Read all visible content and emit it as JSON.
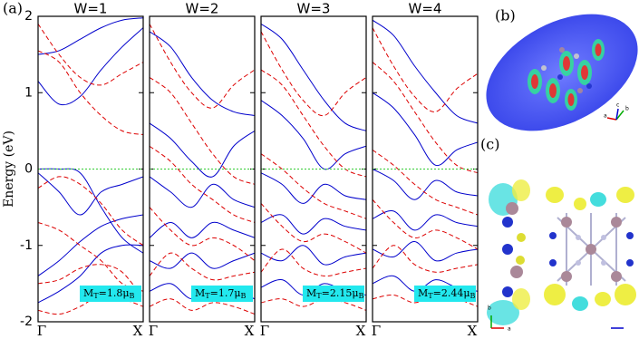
{
  "figure_label": "(a)",
  "chart_data": [
    {
      "type": "line",
      "title": "W=1",
      "ylabel": "Energy (eV)",
      "x": [
        0,
        0.2,
        0.4,
        0.6,
        0.8,
        1
      ],
      "xlim": [
        0,
        1
      ],
      "xticks": [
        {
          "value": 0,
          "label": "Γ"
        },
        {
          "value": 1,
          "label": "X"
        }
      ],
      "ylim": [
        -2,
        2
      ],
      "yticks": [
        2,
        1,
        0,
        -1,
        -2
      ],
      "reference_line": 0,
      "reference_color": "#33cc33",
      "annotation": [
        "M",
        "T",
        "=1.8",
        "μ",
        "B"
      ],
      "series": [
        {
          "color": "#0000cc",
          "dashed": false,
          "values": [
            1.15,
            0.85,
            0.95,
            1.3,
            1.6,
            1.85
          ]
        },
        {
          "color": "#0000cc",
          "dashed": false,
          "values": [
            0.0,
            0.0,
            -0.05,
            -0.5,
            -0.9,
            -1.1
          ]
        },
        {
          "color": "#0000cc",
          "dashed": false,
          "values": [
            -0.05,
            -0.3,
            -0.6,
            -0.3,
            -0.2,
            -0.1
          ]
        },
        {
          "color": "#0000cc",
          "dashed": false,
          "values": [
            -1.4,
            -1.2,
            -0.95,
            -0.75,
            -0.65,
            -0.6
          ]
        },
        {
          "color": "#0000cc",
          "dashed": false,
          "values": [
            -1.75,
            -1.6,
            -1.4,
            -1.1,
            -1.0,
            -1.0
          ]
        },
        {
          "color": "#0000cc",
          "dashed": false,
          "values": [
            1.5,
            1.55,
            1.7,
            1.85,
            1.95,
            1.98
          ]
        },
        {
          "color": "#dd0000",
          "dashed": true,
          "values": [
            1.55,
            1.4,
            1.0,
            0.7,
            0.5,
            0.45
          ]
        },
        {
          "color": "#dd0000",
          "dashed": true,
          "values": [
            1.9,
            1.5,
            1.2,
            1.1,
            1.25,
            1.4
          ]
        },
        {
          "color": "#dd0000",
          "dashed": true,
          "values": [
            -0.25,
            -0.1,
            -0.2,
            -0.45,
            -0.8,
            -1.0
          ]
        },
        {
          "color": "#dd0000",
          "dashed": true,
          "values": [
            -0.7,
            -0.8,
            -1.0,
            -1.2,
            -1.5,
            -1.6
          ]
        },
        {
          "color": "#dd0000",
          "dashed": true,
          "values": [
            -1.5,
            -1.45,
            -1.3,
            -1.25,
            -1.35,
            -1.7
          ]
        },
        {
          "color": "#dd0000",
          "dashed": true,
          "values": [
            -1.85,
            -1.9,
            -1.8,
            -1.65,
            -1.7,
            -1.8
          ]
        }
      ]
    },
    {
      "type": "line",
      "title": "W=2",
      "x": [
        0,
        0.2,
        0.4,
        0.6,
        0.8,
        1
      ],
      "xlim": [
        0,
        1
      ],
      "xticks": [
        {
          "value": 0,
          "label": "Γ"
        },
        {
          "value": 1,
          "label": "X"
        }
      ],
      "ylim": [
        -2,
        2
      ],
      "reference_line": 0,
      "reference_color": "#33cc33",
      "annotation": [
        "M",
        "T",
        "=1.7",
        "μ",
        "B"
      ],
      "series": [
        {
          "color": "#0000cc",
          "dashed": false,
          "values": [
            1.8,
            1.6,
            1.2,
            0.9,
            0.75,
            0.7
          ]
        },
        {
          "color": "#0000cc",
          "dashed": false,
          "values": [
            0.6,
            0.4,
            0.1,
            -0.1,
            0.3,
            0.5
          ]
        },
        {
          "color": "#0000cc",
          "dashed": false,
          "values": [
            -0.1,
            -0.3,
            -0.5,
            -0.2,
            -0.4,
            -0.5
          ]
        },
        {
          "color": "#0000cc",
          "dashed": false,
          "values": [
            -0.9,
            -0.7,
            -0.9,
            -0.7,
            -0.8,
            -0.9
          ]
        },
        {
          "color": "#0000cc",
          "dashed": false,
          "values": [
            -1.2,
            -1.3,
            -1.1,
            -1.3,
            -1.2,
            -1.1
          ]
        },
        {
          "color": "#0000cc",
          "dashed": false,
          "values": [
            -1.6,
            -1.5,
            -1.7,
            -1.55,
            -1.6,
            -1.7
          ]
        },
        {
          "color": "#dd0000",
          "dashed": true,
          "values": [
            1.9,
            1.4,
            1.0,
            0.8,
            1.1,
            1.3
          ]
        },
        {
          "color": "#dd0000",
          "dashed": true,
          "values": [
            1.2,
            1.0,
            0.6,
            0.2,
            -0.1,
            -0.2
          ]
        },
        {
          "color": "#dd0000",
          "dashed": true,
          "values": [
            0.3,
            0.1,
            -0.2,
            -0.4,
            -0.6,
            -0.7
          ]
        },
        {
          "color": "#dd0000",
          "dashed": true,
          "values": [
            -0.5,
            -0.8,
            -1.0,
            -0.9,
            -1.0,
            -1.2
          ]
        },
        {
          "color": "#dd0000",
          "dashed": true,
          "values": [
            -1.4,
            -1.1,
            -1.3,
            -1.45,
            -1.4,
            -1.35
          ]
        },
        {
          "color": "#dd0000",
          "dashed": true,
          "values": [
            -1.8,
            -1.7,
            -1.85,
            -1.75,
            -1.8,
            -1.9
          ]
        }
      ]
    },
    {
      "type": "line",
      "title": "W=3",
      "x": [
        0,
        0.2,
        0.4,
        0.6,
        0.8,
        1
      ],
      "xlim": [
        0,
        1
      ],
      "xticks": [
        {
          "value": 0,
          "label": "Γ"
        },
        {
          "value": 1,
          "label": "X"
        }
      ],
      "ylim": [
        -2,
        2
      ],
      "reference_line": 0,
      "reference_color": "#33cc33",
      "annotation": [
        "M",
        "T",
        "=2.15",
        "μ",
        "B"
      ],
      "series": [
        {
          "color": "#0000cc",
          "dashed": false,
          "values": [
            1.9,
            1.7,
            1.3,
            0.9,
            0.6,
            0.5
          ]
        },
        {
          "color": "#0000cc",
          "dashed": false,
          "values": [
            0.9,
            0.7,
            0.4,
            0.0,
            0.2,
            0.3
          ]
        },
        {
          "color": "#0000cc",
          "dashed": false,
          "values": [
            -0.05,
            -0.2,
            -0.45,
            -0.2,
            -0.35,
            -0.4
          ]
        },
        {
          "color": "#0000cc",
          "dashed": false,
          "values": [
            -0.7,
            -0.6,
            -0.85,
            -0.65,
            -0.75,
            -0.8
          ]
        },
        {
          "color": "#0000cc",
          "dashed": false,
          "values": [
            -1.1,
            -1.2,
            -1.0,
            -1.25,
            -1.15,
            -1.1
          ]
        },
        {
          "color": "#0000cc",
          "dashed": false,
          "values": [
            -1.55,
            -1.45,
            -1.65,
            -1.5,
            -1.6,
            -1.65
          ]
        },
        {
          "color": "#dd0000",
          "dashed": true,
          "values": [
            1.8,
            1.3,
            0.9,
            0.7,
            1.0,
            1.2
          ]
        },
        {
          "color": "#dd0000",
          "dashed": true,
          "values": [
            1.3,
            1.1,
            0.7,
            0.3,
            0.0,
            -0.1
          ]
        },
        {
          "color": "#dd0000",
          "dashed": true,
          "values": [
            0.2,
            0.0,
            -0.25,
            -0.45,
            -0.55,
            -0.65
          ]
        },
        {
          "color": "#dd0000",
          "dashed": true,
          "values": [
            -0.45,
            -0.75,
            -0.95,
            -0.85,
            -0.95,
            -1.1
          ]
        },
        {
          "color": "#dd0000",
          "dashed": true,
          "values": [
            -1.35,
            -1.05,
            -1.3,
            -1.4,
            -1.35,
            -1.3
          ]
        },
        {
          "color": "#dd0000",
          "dashed": true,
          "values": [
            -1.75,
            -1.7,
            -1.8,
            -1.7,
            -1.75,
            -1.85
          ]
        }
      ]
    },
    {
      "type": "line",
      "title": "W=4",
      "x": [
        0,
        0.2,
        0.4,
        0.6,
        0.8,
        1
      ],
      "xlim": [
        0,
        1
      ],
      "xticks": [
        {
          "value": 0,
          "label": "Γ"
        },
        {
          "value": 1,
          "label": "X"
        }
      ],
      "ylim": [
        -2,
        2
      ],
      "reference_line": 0,
      "reference_color": "#33cc33",
      "annotation": [
        "M",
        "T",
        "=2.44",
        "μ",
        "B"
      ],
      "series": [
        {
          "color": "#0000cc",
          "dashed": false,
          "values": [
            1.95,
            1.75,
            1.35,
            1.0,
            0.7,
            0.6
          ]
        },
        {
          "color": "#0000cc",
          "dashed": false,
          "values": [
            1.0,
            0.8,
            0.45,
            0.05,
            0.25,
            0.35
          ]
        },
        {
          "color": "#0000cc",
          "dashed": false,
          "values": [
            0.0,
            -0.15,
            -0.4,
            -0.15,
            -0.3,
            -0.35
          ]
        },
        {
          "color": "#0000cc",
          "dashed": false,
          "values": [
            -0.65,
            -0.55,
            -0.8,
            -0.6,
            -0.7,
            -0.75
          ]
        },
        {
          "color": "#0000cc",
          "dashed": false,
          "values": [
            -1.05,
            -1.15,
            -0.95,
            -1.2,
            -1.1,
            -1.05
          ]
        },
        {
          "color": "#0000cc",
          "dashed": false,
          "values": [
            -1.5,
            -1.4,
            -1.6,
            -1.45,
            -1.55,
            -1.6
          ]
        },
        {
          "color": "#dd0000",
          "dashed": true,
          "values": [
            1.85,
            1.35,
            0.95,
            0.75,
            1.05,
            1.25
          ]
        },
        {
          "color": "#dd0000",
          "dashed": true,
          "values": [
            1.4,
            1.15,
            0.75,
            0.35,
            0.05,
            -0.05
          ]
        },
        {
          "color": "#dd0000",
          "dashed": true,
          "values": [
            0.25,
            0.05,
            -0.2,
            -0.4,
            -0.5,
            -0.6
          ]
        },
        {
          "color": "#dd0000",
          "dashed": true,
          "values": [
            -0.4,
            -0.7,
            -0.9,
            -0.8,
            -0.9,
            -1.05
          ]
        },
        {
          "color": "#dd0000",
          "dashed": true,
          "values": [
            -1.3,
            -1.0,
            -1.25,
            -1.35,
            -1.3,
            -1.25
          ]
        },
        {
          "color": "#dd0000",
          "dashed": true,
          "values": [
            -1.7,
            -1.65,
            -1.75,
            -1.65,
            -1.7,
            -1.8
          ]
        }
      ]
    }
  ],
  "panel_b": {
    "label": "(b)",
    "axes": [
      "a",
      "c",
      "b"
    ]
  },
  "panel_c": {
    "label": "(c)",
    "axes": [
      "b",
      "a"
    ]
  }
}
